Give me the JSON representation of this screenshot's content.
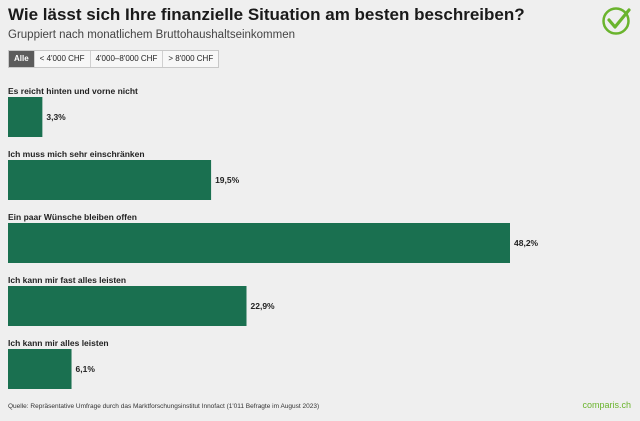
{
  "header": {
    "title": "Wie lässt sich Ihre finanzielle Situation am besten beschreiben?",
    "subtitle": "Gruppiert nach monatlichem Bruttohaushaltseinkommen"
  },
  "tabs": [
    {
      "label": "Alle",
      "active": true
    },
    {
      "label": "< 4'000 CHF",
      "active": false
    },
    {
      "label": "4'000–8'000 CHF",
      "active": false
    },
    {
      "label": "> 8'000 CHF",
      "active": false
    }
  ],
  "chart_data": {
    "type": "bar",
    "orientation": "horizontal",
    "title": "Wie lässt sich Ihre finanzielle Situation am besten beschreiben?",
    "categories": [
      "Es reicht hinten und vorne nicht",
      "Ich muss mich sehr einschränken",
      "Ein paar Wünsche bleiben offen",
      "Ich kann mir fast alles leisten",
      "Ich kann mir alles leisten"
    ],
    "values": [
      3.3,
      19.5,
      48.2,
      22.9,
      6.1
    ],
    "value_labels": [
      "3,3%",
      "19,5%",
      "48,2%",
      "22,9%",
      "6,1%"
    ],
    "xlabel": "",
    "ylabel": "",
    "xlim": [
      0,
      48.2
    ],
    "grid": false,
    "legend": "none"
  },
  "colors": {
    "bar": "#1a7050",
    "background": "#efefef",
    "brand": "#6ab42d"
  },
  "footer": {
    "source": "Quelle: Repräsentative Umfrage durch das Marktforschungsinstitut Innofact (1'011 Befragte im August 2023)",
    "brand": "comparis.ch"
  }
}
